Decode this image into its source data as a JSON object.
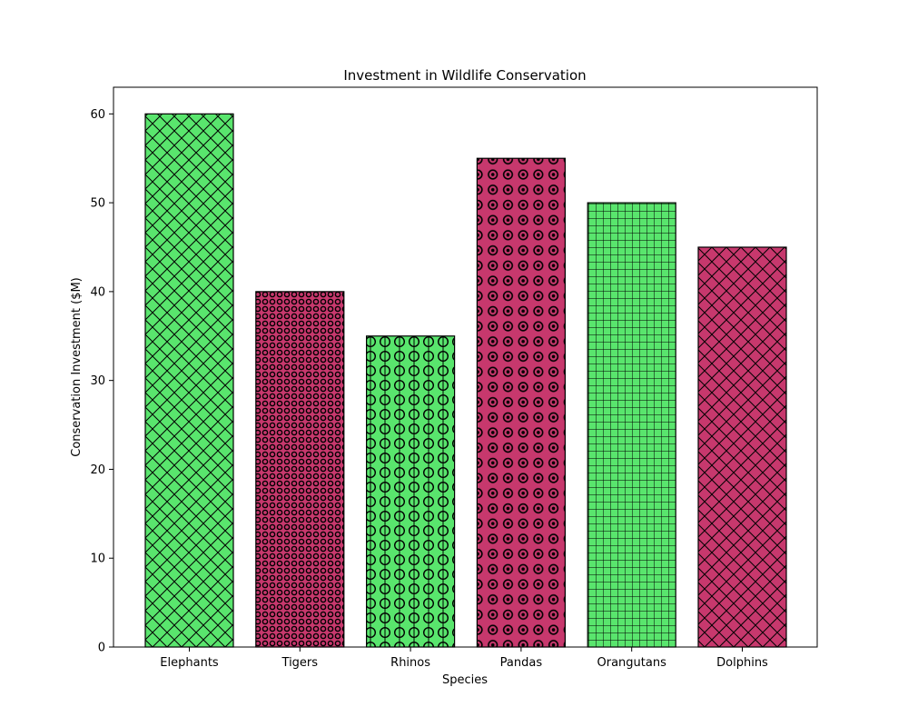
{
  "chart_data": {
    "type": "bar",
    "title": "Investment in Wildlife Conservation",
    "xlabel": "Species",
    "ylabel": "Conservation Investment ($M)",
    "categories": [
      "Elephants",
      "Tigers",
      "Rhinos",
      "Pandas",
      "Orangutans",
      "Dolphins"
    ],
    "values": [
      60,
      40,
      35,
      55,
      50,
      45
    ],
    "ylim": [
      0,
      63
    ],
    "yticks": [
      0,
      10,
      20,
      30,
      40,
      50,
      60
    ],
    "grid": false,
    "legend": "none",
    "bar_colors": [
      "#59e56d",
      "#c7386d",
      "#59e56d",
      "#c7386d",
      "#59e56d",
      "#c7386d"
    ],
    "bar_patterns": [
      "diagonal-cross",
      "small-circles",
      "vertical-circles",
      "large-circles",
      "grid",
      "diagonal-cross"
    ],
    "edge_color": "#000000"
  }
}
